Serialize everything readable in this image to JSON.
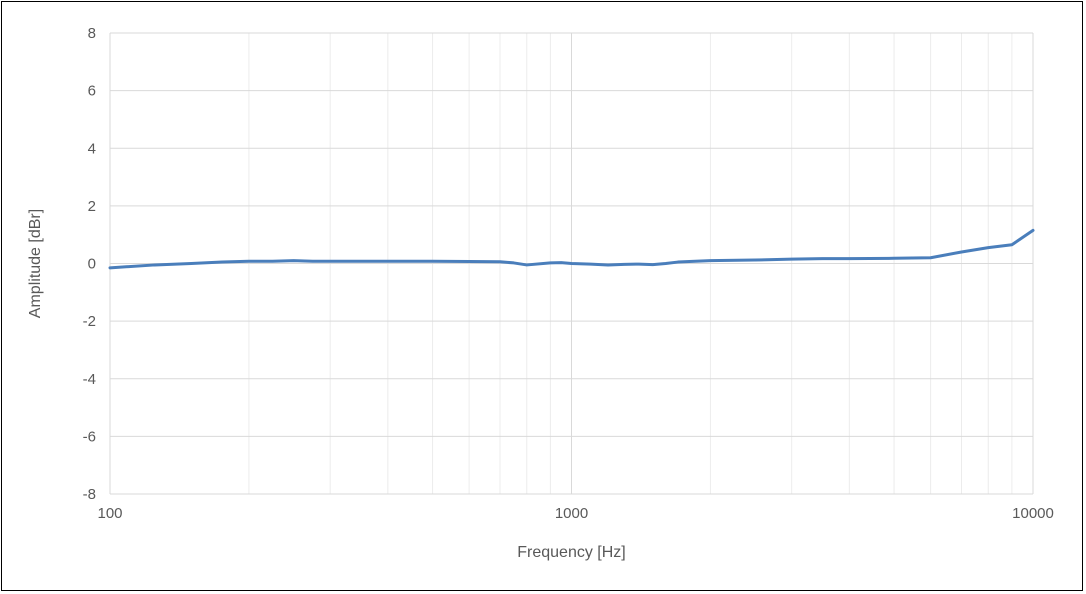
{
  "chart_data": {
    "type": "line",
    "xlabel": "Frequency [Hz]",
    "ylabel": "Amplitude [dBr]",
    "xscale": "log",
    "xlim": [
      100,
      10000
    ],
    "ylim": [
      -8,
      8
    ],
    "xticks": [
      100,
      1000,
      10000
    ],
    "xtick_labels": [
      "100",
      "1000",
      "10000"
    ],
    "yticks": [
      -8,
      -6,
      -4,
      -2,
      0,
      2,
      4,
      6,
      8
    ],
    "ytick_labels": [
      "-8",
      "-6",
      "-4",
      "-2",
      "0",
      "2",
      "4",
      "6",
      "8"
    ],
    "grid": true,
    "legend": "none",
    "series": [
      {
        "color": "#4a7ebb",
        "x": [
          100,
          125,
          150,
          175,
          200,
          225,
          250,
          275,
          300,
          400,
          500,
          600,
          700,
          750,
          800,
          900,
          950,
          1000,
          1100,
          1200,
          1300,
          1400,
          1500,
          1600,
          1700,
          1800,
          2000,
          2500,
          3000,
          3500,
          4000,
          5000,
          6000,
          7000,
          8000,
          9000,
          10000
        ],
        "y": [
          -0.15,
          -0.05,
          0.0,
          0.05,
          0.08,
          0.08,
          0.1,
          0.08,
          0.08,
          0.08,
          0.08,
          0.07,
          0.06,
          0.02,
          -0.05,
          0.02,
          0.03,
          0.0,
          -0.02,
          -0.05,
          -0.03,
          -0.02,
          -0.04,
          0.0,
          0.05,
          0.07,
          0.1,
          0.12,
          0.15,
          0.17,
          0.17,
          0.18,
          0.2,
          0.4,
          0.55,
          0.65,
          1.15
        ]
      }
    ]
  }
}
